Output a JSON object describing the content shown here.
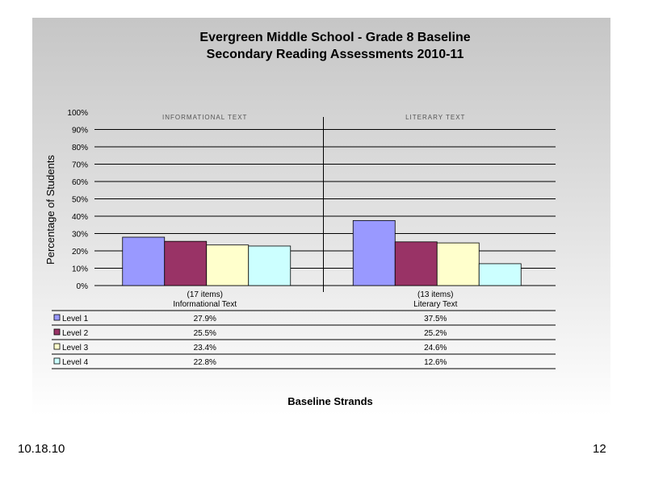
{
  "slide": {
    "date": "10.18.10",
    "page_number": "12"
  },
  "chart_data": {
    "type": "bar",
    "title": "Evergreen Middle School  - Grade 8 Baseline",
    "subtitle": "Secondary Reading Assessments 2010-11",
    "ylabel": "Percentage of Students",
    "xlabel": "Baseline Strands",
    "ylim": [
      0,
      100
    ],
    "y_ticks": [
      "0%",
      "10%",
      "20%",
      "30%",
      "40%",
      "50%",
      "60%",
      "70%",
      "80%",
      "90%",
      "100%"
    ],
    "grid": true,
    "categories": [
      "Informational Text",
      "Literary Text"
    ],
    "category_counts": [
      "(17 items)",
      "(13 items)"
    ],
    "panel_labels": [
      "INFORMATIONAL TEXT",
      "LITERARY TEXT"
    ],
    "series": [
      {
        "name": "Level 1",
        "values": [
          27.9,
          37.5
        ],
        "labels": [
          "27.9%",
          "37.5%"
        ],
        "color": "#9999ff"
      },
      {
        "name": "Level 2",
        "values": [
          25.5,
          25.2
        ],
        "labels": [
          "25.5%",
          "25.2%"
        ],
        "color": "#993366"
      },
      {
        "name": "Level 3",
        "values": [
          23.4,
          24.6
        ],
        "labels": [
          "23.4%",
          "24.6%"
        ],
        "color": "#ffffcc"
      },
      {
        "name": "Level 4",
        "values": [
          22.8,
          12.6
        ],
        "labels": [
          "22.8%",
          "12.6%"
        ],
        "color": "#ccffff"
      }
    ],
    "legend": "data-table-below"
  }
}
